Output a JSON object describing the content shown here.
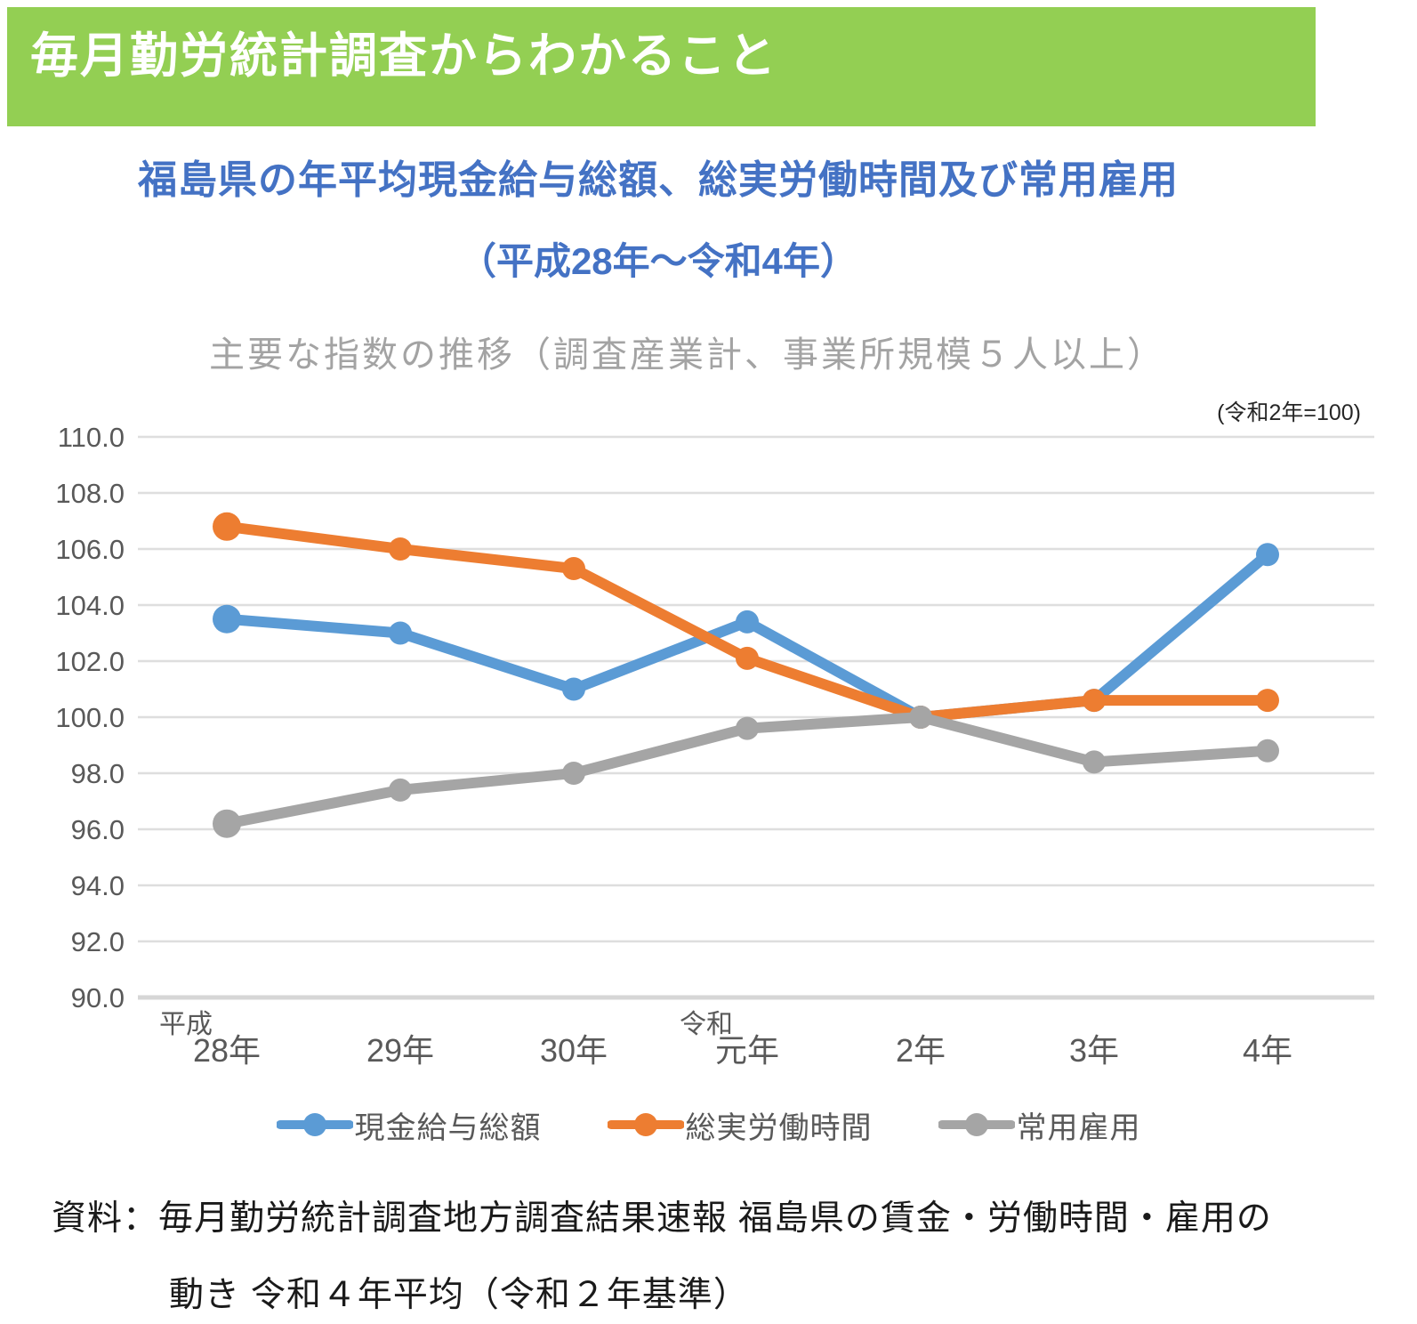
{
  "header": {
    "title": "毎月勤労統計調査からわかること"
  },
  "subtitle": {
    "line1": "福島県の年平均現金給与総額、総実労働時間及び常用雇用",
    "line2": "（平成28年～令和4年）"
  },
  "chart_data": {
    "type": "line",
    "title": "主要な指数の推移（調査産業計、事業所規模５人以上）",
    "note": "(令和2年=100)",
    "categories": [
      "28年",
      "29年",
      "30年",
      "元年",
      "2年",
      "3年",
      "4年"
    ],
    "x_era_labels": [
      {
        "index": 0,
        "text": "平成"
      },
      {
        "index": 3,
        "text": "令和"
      }
    ],
    "ylim": [
      90.0,
      110.0
    ],
    "ytick_step": 2.0,
    "grid": true,
    "legend_position": "bottom",
    "series": [
      {
        "name": "現金給与総額",
        "color": "#5B9BD5",
        "values": [
          103.5,
          103.0,
          101.0,
          103.4,
          100.0,
          100.6,
          105.8
        ]
      },
      {
        "name": "総実労働時間",
        "color": "#ED7D31",
        "values": [
          106.8,
          106.0,
          105.3,
          102.1,
          100.0,
          100.6,
          100.6
        ]
      },
      {
        "name": "常用雇用",
        "color": "#A5A5A5",
        "values": [
          96.2,
          97.4,
          98.0,
          99.6,
          100.0,
          98.4,
          98.8
        ]
      }
    ]
  },
  "footer": {
    "line1": "資料：毎月勤労統計調査地方調査結果速報 福島県の賃金・労働時間・雇用の",
    "line2": "動き 令和４年平均（令和２年基準）"
  },
  "colors": {
    "banner_green": "#93CF53",
    "title_blue": "#4472C4",
    "chart_title_gray": "#A3A3A3",
    "axis_text": "#595959",
    "gridline": "#DEDEDE",
    "axis_line": "#D6D6D6"
  }
}
